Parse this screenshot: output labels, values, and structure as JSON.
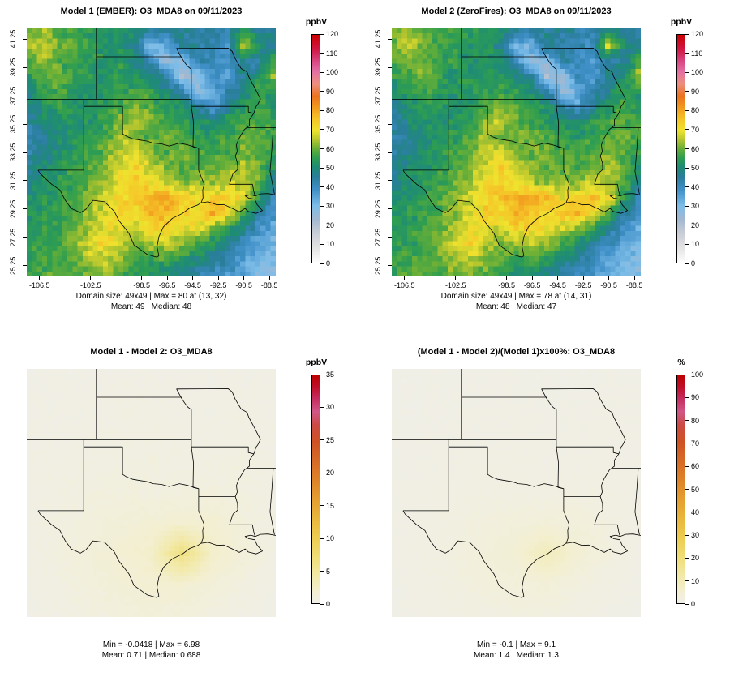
{
  "chart_data": {
    "type": "heatmap",
    "description": "2x2 model comparison of O3_MDA8 spatial fields over the south-central US with state boundaries and vertical colorbars",
    "lon_range": [
      -107.5,
      -88.0
    ],
    "lat_range": [
      24.5,
      42.0
    ],
    "x_ticks": [
      -106.5,
      -102.5,
      -98.5,
      -96.5,
      -94.5,
      -92.5,
      -90.5,
      -88.5
    ],
    "y_ticks": [
      25.25,
      27.25,
      29.25,
      31.25,
      33.25,
      35.25,
      37.25,
      39.25,
      41.25
    ],
    "panels": [
      {
        "title": "Model 1 (EMBER): O3_MDA8 on 09/11/2023",
        "caption1": "Domain size: 49x49 | Max = 80 at (13, 32)",
        "caption2": "Mean: 49 |  Median: 48",
        "cb_label": "ppbV",
        "cb_max": 120,
        "cb_ticks": [
          0,
          10,
          20,
          30,
          40,
          50,
          60,
          70,
          80,
          90,
          100,
          110,
          120
        ],
        "grid": "o3",
        "palette": "o3",
        "noise": 3,
        "axes": true
      },
      {
        "title": "Model 2 (ZeroFires): O3_MDA8 on 09/11/2023",
        "caption1": "Domain size: 49x49 | Max = 78 at (14, 31)",
        "caption2": "Mean: 48 |  Median: 47",
        "cb_label": "ppbV",
        "cb_max": 120,
        "cb_ticks": [
          0,
          10,
          20,
          30,
          40,
          50,
          60,
          70,
          80,
          90,
          100,
          110,
          120
        ],
        "grid": "o3",
        "palette": "o3",
        "noise": 3,
        "axes": true
      },
      {
        "title": "Model 1 - Model 2: O3_MDA8",
        "caption1": "Min = -0.0418 | Max = 6.98",
        "caption2": "Mean: 0.71 |  Median: 0.688",
        "cb_label": "ppbV",
        "cb_max": 35,
        "cb_ticks": [
          0,
          5,
          10,
          15,
          20,
          25,
          30,
          35
        ],
        "grid": "diff",
        "palette": "warm",
        "noise": 0.15,
        "axes": false
      },
      {
        "title": "(Model 1 - Model 2)/(Model 1)x100%: O3_MDA8",
        "caption1": "Min = -0.1 | Max = 9.1",
        "caption2": "Mean: 1.4 |  Median: 1.3",
        "cb_label": "%",
        "cb_max": 100,
        "cb_ticks": [
          0,
          10,
          20,
          30,
          40,
          50,
          60,
          70,
          80,
          90,
          100
        ],
        "grid": "pct",
        "palette": "warm",
        "noise": 0.3,
        "axes": false
      }
    ],
    "grids": {
      "o3": [
        [
          60,
          64,
          58,
          56,
          55,
          54,
          52,
          50,
          46,
          44,
          46,
          45,
          44,
          42,
          52,
          46,
          44
        ],
        [
          62,
          68,
          60,
          57,
          55,
          53,
          52,
          48,
          28,
          34,
          45,
          44,
          42,
          38,
          66,
          52,
          46
        ],
        [
          58,
          62,
          57,
          55,
          54,
          52,
          53,
          50,
          42,
          24,
          28,
          44,
          40,
          38,
          46,
          42,
          58
        ],
        [
          55,
          58,
          62,
          55,
          53,
          52,
          54,
          52,
          50,
          44,
          22,
          26,
          40,
          36,
          46,
          52,
          62
        ],
        [
          50,
          55,
          57,
          54,
          52,
          53,
          55,
          56,
          54,
          50,
          44,
          26,
          32,
          42,
          48,
          55,
          54
        ],
        [
          46,
          52,
          54,
          53,
          52,
          54,
          58,
          62,
          58,
          54,
          52,
          46,
          36,
          46,
          52,
          57,
          52
        ],
        [
          44,
          50,
          52,
          52,
          53,
          56,
          62,
          66,
          60,
          56,
          54,
          52,
          50,
          54,
          58,
          58,
          55
        ],
        [
          42,
          46,
          50,
          52,
          54,
          58,
          64,
          60,
          58,
          62,
          58,
          55,
          54,
          56,
          58,
          60,
          57
        ],
        [
          44,
          48,
          52,
          54,
          56,
          60,
          66,
          70,
          62,
          58,
          62,
          58,
          56,
          58,
          62,
          58,
          55
        ],
        [
          46,
          50,
          53,
          55,
          58,
          62,
          68,
          72,
          66,
          62,
          58,
          60,
          58,
          60,
          64,
          60,
          52
        ],
        [
          48,
          52,
          54,
          56,
          60,
          64,
          70,
          74,
          70,
          66,
          62,
          64,
          62,
          66,
          66,
          60,
          48
        ],
        [
          50,
          53,
          55,
          57,
          62,
          66,
          72,
          76,
          78,
          80,
          76,
          70,
          72,
          76,
          70,
          55,
          42
        ],
        [
          52,
          54,
          56,
          58,
          63,
          68,
          74,
          72,
          78,
          76,
          72,
          74,
          78,
          70,
          58,
          46,
          38
        ],
        [
          53,
          55,
          56,
          60,
          65,
          70,
          68,
          66,
          72,
          74,
          70,
          68,
          62,
          56,
          48,
          40,
          33
        ],
        [
          54,
          56,
          57,
          62,
          68,
          72,
          66,
          62,
          64,
          66,
          62,
          58,
          52,
          46,
          40,
          35,
          31
        ],
        [
          55,
          57,
          58,
          60,
          64,
          66,
          62,
          58,
          56,
          58,
          54,
          50,
          46,
          42,
          36,
          32,
          29
        ],
        [
          56,
          58,
          58,
          58,
          60,
          62,
          58,
          54,
          52,
          50,
          48,
          44,
          40,
          38,
          34,
          30,
          28
        ]
      ],
      "diff": [
        [
          0.3,
          0.3,
          0.3,
          0.4,
          0.4,
          0.3,
          0.3,
          0.4,
          0.3
        ],
        [
          0.3,
          0.4,
          0.4,
          0.5,
          0.5,
          0.4,
          0.4,
          0.5,
          0.4
        ],
        [
          0.4,
          0.4,
          0.5,
          0.5,
          0.6,
          0.5,
          0.5,
          0.6,
          0.4
        ],
        [
          0.4,
          0.5,
          0.6,
          0.7,
          0.7,
          0.6,
          0.6,
          0.7,
          0.5
        ],
        [
          0.5,
          0.6,
          0.8,
          0.9,
          0.8,
          0.8,
          0.9,
          0.8,
          0.5
        ],
        [
          0.5,
          0.7,
          1.0,
          1.3,
          1.5,
          1.8,
          1.6,
          1.0,
          0.6
        ],
        [
          0.5,
          0.8,
          1.2,
          1.6,
          2.2,
          6.5,
          2.2,
          1.2,
          0.5
        ],
        [
          0.4,
          0.7,
          1.0,
          1.4,
          1.6,
          1.8,
          1.2,
          0.8,
          0.4
        ],
        [
          0.3,
          0.5,
          0.8,
          1.0,
          1.2,
          1.0,
          0.8,
          0.5,
          0.3
        ]
      ],
      "pct": [
        [
          0.6,
          0.6,
          0.6,
          0.8,
          0.8,
          0.6,
          0.6,
          0.8,
          0.6
        ],
        [
          0.6,
          0.8,
          0.8,
          1.0,
          1.0,
          0.8,
          0.8,
          1.0,
          0.8
        ],
        [
          0.8,
          0.8,
          1.0,
          1.0,
          1.2,
          1.0,
          1.0,
          1.2,
          0.8
        ],
        [
          0.8,
          1.0,
          1.2,
          1.4,
          1.4,
          1.2,
          1.2,
          1.4,
          1.0
        ],
        [
          1.0,
          1.2,
          1.6,
          1.8,
          1.6,
          1.6,
          1.8,
          1.6,
          1.0
        ],
        [
          1.0,
          1.4,
          2.0,
          2.6,
          3.0,
          3.5,
          3.2,
          2.0,
          1.2
        ],
        [
          1.0,
          1.6,
          2.4,
          3.2,
          4.4,
          9.0,
          4.4,
          2.4,
          1.0
        ],
        [
          0.8,
          1.4,
          2.0,
          2.8,
          3.2,
          3.6,
          2.4,
          1.6,
          0.8
        ],
        [
          0.6,
          1.0,
          1.6,
          2.0,
          2.4,
          2.0,
          1.6,
          1.0,
          0.6
        ]
      ]
    },
    "palettes": {
      "o3": [
        [
          0.0,
          "#FEFEFE"
        ],
        [
          0.065,
          "#E3E3E3"
        ],
        [
          0.13,
          "#C8CDD6"
        ],
        [
          0.19,
          "#A3B8D0"
        ],
        [
          0.25,
          "#7DBDE8"
        ],
        [
          0.32,
          "#4090C8"
        ],
        [
          0.375,
          "#2A7E9C"
        ],
        [
          0.42,
          "#1E8C74"
        ],
        [
          0.46,
          "#2F9E50"
        ],
        [
          0.5,
          "#66AE38"
        ],
        [
          0.54,
          "#B6C62E"
        ],
        [
          0.58,
          "#EFE32E"
        ],
        [
          0.63,
          "#F5C428"
        ],
        [
          0.68,
          "#F19B1E"
        ],
        [
          0.73,
          "#EB721E"
        ],
        [
          0.785,
          "#ED8F80"
        ],
        [
          0.84,
          "#E26FA4"
        ],
        [
          0.89,
          "#D8417C"
        ],
        [
          0.94,
          "#D01540"
        ],
        [
          1.0,
          "#CB0000"
        ]
      ],
      "warm": [
        [
          0.0,
          "#F0EFE9"
        ],
        [
          0.05,
          "#F3EFD2"
        ],
        [
          0.12,
          "#F2E9A8"
        ],
        [
          0.2,
          "#F0DE78"
        ],
        [
          0.28,
          "#EDCE52"
        ],
        [
          0.36,
          "#EABA3E"
        ],
        [
          0.45,
          "#E5A030"
        ],
        [
          0.54,
          "#DE8328"
        ],
        [
          0.63,
          "#D66826"
        ],
        [
          0.71,
          "#CE5224"
        ],
        [
          0.78,
          "#CC4A42"
        ],
        [
          0.84,
          "#D05788"
        ],
        [
          0.9,
          "#C62A5E"
        ],
        [
          0.95,
          "#C00E28"
        ],
        [
          1.0,
          "#BB0000"
        ]
      ]
    },
    "state_lines": [
      [
        [
          -107.5,
          37.0
        ],
        [
          -94.61,
          37.0
        ]
      ],
      [
        [
          -102.05,
          42.0
        ],
        [
          -102.05,
          37.0
        ]
      ],
      [
        [
          -102.05,
          40.0
        ],
        [
          -95.31,
          40.0
        ]
      ],
      [
        [
          -94.61,
          37.0
        ],
        [
          -94.61,
          39.12
        ],
        [
          -94.88,
          39.3
        ],
        [
          -95.1,
          39.55
        ],
        [
          -95.4,
          39.95
        ],
        [
          -95.77,
          40.58
        ],
        [
          -91.73,
          40.6
        ],
        [
          -91.42,
          40.38
        ],
        [
          -91.18,
          39.87
        ],
        [
          -90.72,
          39.17
        ],
        [
          -90.25,
          38.93
        ],
        [
          -90.12,
          38.6
        ],
        [
          -89.7,
          37.9
        ],
        [
          -89.2,
          37.02
        ],
        [
          -89.42,
          36.62
        ],
        [
          -89.54,
          36.5
        ]
      ],
      [
        [
          -94.61,
          36.5
        ],
        [
          -90.15,
          36.5
        ],
        [
          -90.15,
          36.1
        ],
        [
          -89.72,
          36.0
        ],
        [
          -89.54,
          36.5
        ]
      ],
      [
        [
          -94.61,
          37.0
        ],
        [
          -94.61,
          36.5
        ],
        [
          -94.45,
          35.4
        ],
        [
          -94.48,
          33.64
        ],
        [
          -94.04,
          33.55
        ],
        [
          -94.04,
          33.0
        ]
      ],
      [
        [
          -89.72,
          36.0
        ],
        [
          -90.07,
          35.55
        ],
        [
          -90.07,
          35.13
        ],
        [
          -90.46,
          34.87
        ],
        [
          -90.9,
          34.2
        ],
        [
          -91.08,
          33.77
        ],
        [
          -91.02,
          33.3
        ],
        [
          -91.17,
          33.0
        ]
      ],
      [
        [
          -94.04,
          33.0
        ],
        [
          -91.17,
          33.0
        ]
      ],
      [
        [
          -91.17,
          33.0
        ],
        [
          -91.0,
          32.5
        ],
        [
          -90.98,
          32.04
        ],
        [
          -91.35,
          31.76
        ],
        [
          -91.52,
          31.32
        ],
        [
          -91.63,
          31.0
        ],
        [
          -89.83,
          31.0
        ],
        [
          -89.72,
          30.5
        ],
        [
          -89.62,
          30.18
        ]
      ],
      [
        [
          -94.04,
          33.55
        ],
        [
          -94.9,
          33.78
        ],
        [
          -95.55,
          33.9
        ],
        [
          -96.35,
          33.7
        ],
        [
          -96.95,
          33.85
        ],
        [
          -97.6,
          33.9
        ],
        [
          -98.1,
          34.05
        ],
        [
          -98.6,
          34.12
        ],
        [
          -99.2,
          34.21
        ],
        [
          -99.7,
          34.39
        ],
        [
          -100.0,
          34.56
        ]
      ],
      [
        [
          -100.0,
          34.56
        ],
        [
          -100.0,
          36.5
        ],
        [
          -103.04,
          36.5
        ]
      ],
      [
        [
          -103.04,
          37.0
        ],
        [
          -103.04,
          32.0
        ],
        [
          -106.62,
          32.0
        ]
      ],
      [
        [
          -106.62,
          32.0
        ],
        [
          -106.45,
          31.75
        ],
        [
          -105.55,
          31.0
        ],
        [
          -104.9,
          30.6
        ],
        [
          -104.5,
          29.9
        ],
        [
          -104.02,
          29.3
        ],
        [
          -103.3,
          29.0
        ],
        [
          -102.85,
          29.25
        ],
        [
          -102.32,
          29.87
        ],
        [
          -101.4,
          29.77
        ],
        [
          -100.65,
          29.1
        ],
        [
          -100.29,
          28.45
        ],
        [
          -99.5,
          27.55
        ],
        [
          -99.1,
          26.72
        ],
        [
          -98.08,
          26.06
        ],
        [
          -97.35,
          25.87
        ],
        [
          -97.15,
          25.95
        ]
      ],
      [
        [
          -97.15,
          25.95
        ],
        [
          -97.3,
          26.6
        ],
        [
          -97.15,
          27.3
        ],
        [
          -96.8,
          28.0
        ],
        [
          -96.1,
          28.6
        ],
        [
          -95.3,
          28.95
        ],
        [
          -94.73,
          29.33
        ],
        [
          -94.1,
          29.55
        ],
        [
          -93.85,
          29.7
        ]
      ],
      [
        [
          -93.85,
          29.7
        ],
        [
          -93.7,
          30.05
        ],
        [
          -93.72,
          30.6
        ],
        [
          -93.6,
          31.0
        ],
        [
          -93.83,
          31.5
        ],
        [
          -94.04,
          31.99
        ],
        [
          -94.04,
          33.0
        ]
      ],
      [
        [
          -93.85,
          29.7
        ],
        [
          -93.3,
          29.77
        ],
        [
          -92.6,
          29.55
        ],
        [
          -92.05,
          29.57
        ],
        [
          -91.3,
          29.25
        ],
        [
          -90.85,
          29.05
        ],
        [
          -90.4,
          29.3
        ],
        [
          -90.15,
          29.08
        ],
        [
          -89.55,
          28.95
        ],
        [
          -89.05,
          29.15
        ],
        [
          -89.45,
          29.55
        ],
        [
          -89.65,
          29.95
        ],
        [
          -90.1,
          30.02
        ],
        [
          -90.4,
          30.18
        ],
        [
          -89.95,
          30.27
        ],
        [
          -89.62,
          30.18
        ]
      ],
      [
        [
          -89.62,
          30.18
        ],
        [
          -89.2,
          30.33
        ],
        [
          -88.6,
          30.35
        ],
        [
          -88.0,
          30.25
        ]
      ],
      [
        [
          -88.1,
          30.3
        ],
        [
          -88.45,
          31.9
        ],
        [
          -88.3,
          33.6
        ],
        [
          -88.2,
          35.0
        ]
      ],
      [
        [
          -90.3,
          35.0
        ],
        [
          -88.0,
          35.0
        ]
      ]
    ]
  }
}
